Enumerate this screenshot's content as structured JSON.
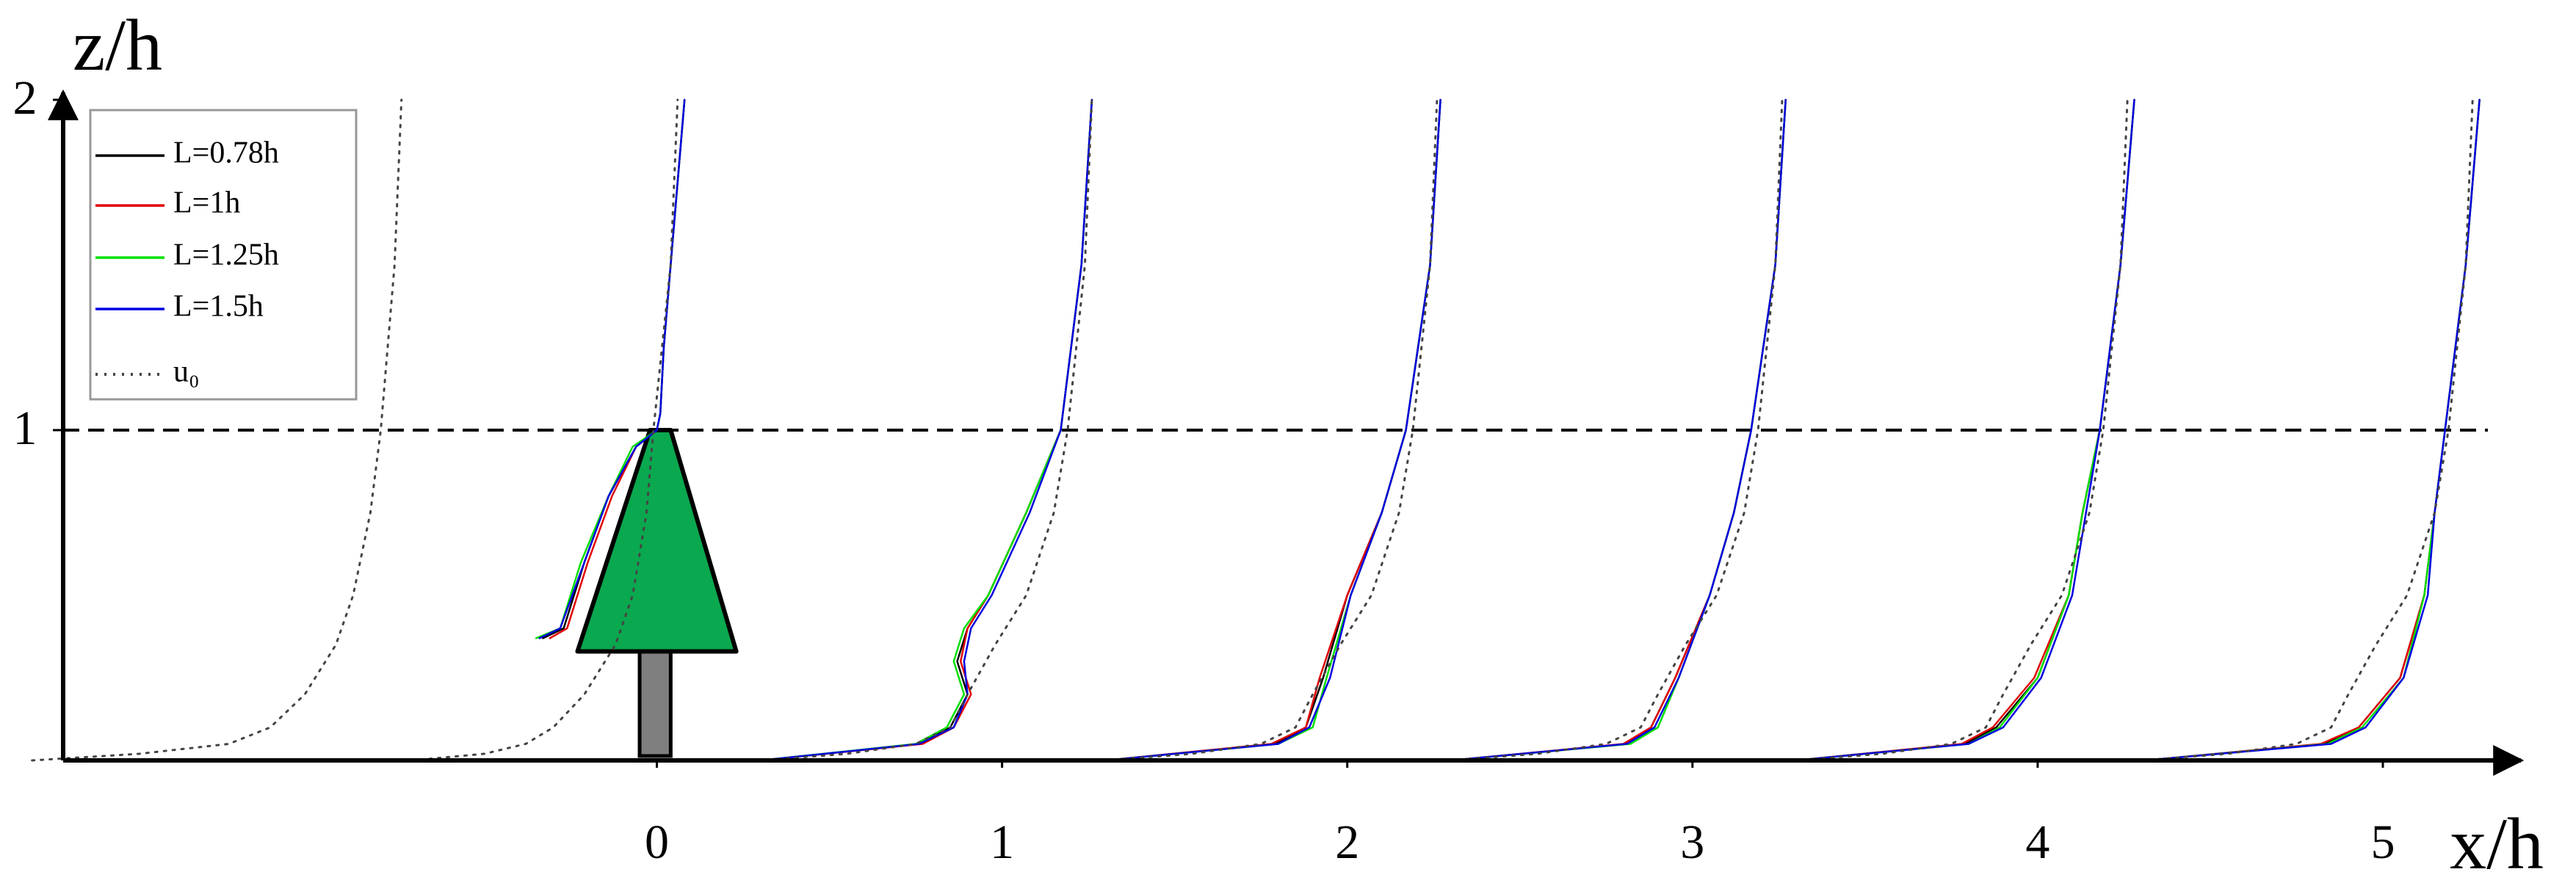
{
  "chart_data": {
    "type": "line",
    "x_label": "x/h",
    "y_label": "z/h",
    "xlim": [
      -1.72,
      5.4
    ],
    "ylim": [
      0,
      2
    ],
    "xticks": [
      0,
      1,
      2,
      3,
      4,
      5
    ],
    "yticks": [
      1,
      2
    ],
    "hline": 1,
    "legend": "upper left",
    "series": [
      {
        "name": "L=0.78h",
        "color": "#000000",
        "linestyle": "solid",
        "x": [
          -0.33,
          -0.27,
          -0.21,
          -0.14,
          -0.06,
          0,
          0.01,
          0.02,
          0.04,
          0.08,
          null,
          0.3,
          0.76,
          0.85,
          0.9,
          0.87,
          0.9,
          0.96,
          1.07,
          1.17,
          1.23,
          1.26,
          null,
          1.3,
          1.79,
          1.88,
          1.93,
          2,
          2.1,
          2.17,
          2.24,
          2.27,
          null,
          2.3,
          2.81,
          2.88,
          2.95,
          3.05,
          3.12,
          3.17,
          3.24,
          3.27,
          null,
          3.3,
          3.79,
          3.88,
          4,
          4.09,
          4.13,
          4.18,
          4.24,
          4.28,
          null,
          4.31,
          4.83,
          4.93,
          5.05,
          5.12,
          5.15,
          5.18,
          5.24,
          5.28
        ],
        "values": [
          0.37,
          0.4,
          0.6,
          0.8,
          0.95,
          1,
          1.05,
          1.25,
          1.5,
          2,
          null,
          0,
          0.05,
          0.1,
          0.2,
          0.3,
          0.4,
          0.5,
          0.75,
          1,
          1.5,
          2,
          null,
          0,
          0.05,
          0.1,
          0.25,
          0.5,
          0.75,
          1,
          1.5,
          2,
          null,
          0,
          0.05,
          0.1,
          0.25,
          0.5,
          0.75,
          1,
          1.5,
          2,
          null,
          0,
          0.05,
          0.1,
          0.25,
          0.5,
          0.75,
          1,
          1.5,
          2,
          null,
          0,
          0.05,
          0.1,
          0.25,
          0.5,
          0.75,
          1,
          1.5,
          2
        ]
      },
      {
        "name": "L=1h",
        "color": "#e00000",
        "linestyle": "solid",
        "x": [
          -0.31,
          -0.26,
          -0.2,
          -0.13,
          -0.06,
          0,
          0.01,
          0.02,
          0.04,
          0.08,
          null,
          0.3,
          0.77,
          0.86,
          0.91,
          0.88,
          0.9,
          0.96,
          1.07,
          1.17,
          1.23,
          1.26,
          null,
          1.3,
          1.78,
          1.88,
          1.92,
          2,
          2.1,
          2.17,
          2.24,
          2.27,
          null,
          2.3,
          2.8,
          2.88,
          2.95,
          3.05,
          3.12,
          3.17,
          3.24,
          3.27,
          null,
          3.3,
          3.78,
          3.87,
          3.99,
          4.09,
          4.13,
          4.18,
          4.24,
          4.28,
          null,
          4.31,
          4.82,
          4.93,
          5.05,
          5.12,
          5.15,
          5.18,
          5.24,
          5.28
        ],
        "values": [
          0.37,
          0.4,
          0.6,
          0.8,
          0.95,
          1,
          1.05,
          1.25,
          1.5,
          2,
          null,
          0,
          0.05,
          0.1,
          0.2,
          0.3,
          0.4,
          0.5,
          0.75,
          1,
          1.5,
          2,
          null,
          0,
          0.05,
          0.1,
          0.25,
          0.5,
          0.75,
          1,
          1.5,
          2,
          null,
          0,
          0.05,
          0.1,
          0.25,
          0.5,
          0.75,
          1,
          1.5,
          2,
          null,
          0,
          0.05,
          0.1,
          0.25,
          0.5,
          0.75,
          1,
          1.5,
          2,
          null,
          0,
          0.05,
          0.1,
          0.25,
          0.5,
          0.75,
          1,
          1.5,
          2
        ]
      },
      {
        "name": "L=1.25h",
        "color": "#00e000",
        "linestyle": "solid",
        "x": [
          -0.35,
          -0.28,
          -0.22,
          -0.14,
          -0.07,
          0,
          0.01,
          0.02,
          0.04,
          0.08,
          null,
          0.3,
          0.75,
          0.84,
          0.89,
          0.86,
          0.89,
          0.96,
          1.07,
          1.17,
          1.23,
          1.26,
          null,
          1.3,
          1.8,
          1.9,
          1.94,
          2.01,
          2.1,
          2.17,
          2.24,
          2.27,
          null,
          2.3,
          2.82,
          2.9,
          2.96,
          3.05,
          3.12,
          3.17,
          3.24,
          3.27,
          null,
          3.3,
          3.8,
          3.89,
          4,
          4.09,
          4.13,
          4.18,
          4.24,
          4.28,
          null,
          4.31,
          4.84,
          4.94,
          5.06,
          5.12,
          5.15,
          5.18,
          5.24,
          5.28
        ],
        "values": [
          0.37,
          0.4,
          0.6,
          0.8,
          0.95,
          1,
          1.05,
          1.25,
          1.5,
          2,
          null,
          0,
          0.05,
          0.1,
          0.2,
          0.3,
          0.4,
          0.5,
          0.75,
          1,
          1.5,
          2,
          null,
          0,
          0.05,
          0.1,
          0.25,
          0.5,
          0.75,
          1,
          1.5,
          2,
          null,
          0,
          0.05,
          0.1,
          0.25,
          0.5,
          0.75,
          1,
          1.5,
          2,
          null,
          0,
          0.05,
          0.1,
          0.25,
          0.5,
          0.75,
          1,
          1.5,
          2,
          null,
          0,
          0.05,
          0.1,
          0.25,
          0.5,
          0.75,
          1,
          1.5,
          2
        ]
      },
      {
        "name": "L=1.5h",
        "color": "#0000e0",
        "linestyle": "solid",
        "x": [
          -0.34,
          -0.28,
          -0.21,
          -0.14,
          -0.06,
          0,
          0.01,
          0.02,
          0.04,
          0.08,
          null,
          0.3,
          0.76,
          0.86,
          0.9,
          0.89,
          0.91,
          0.97,
          1.08,
          1.17,
          1.23,
          1.26,
          null,
          1.3,
          1.8,
          1.89,
          1.95,
          2.01,
          2.1,
          2.17,
          2.24,
          2.27,
          null,
          2.3,
          2.81,
          2.89,
          2.96,
          3.05,
          3.12,
          3.17,
          3.24,
          3.27,
          null,
          3.3,
          3.8,
          3.9,
          4.01,
          4.1,
          4.14,
          4.18,
          4.24,
          4.28,
          null,
          4.31,
          4.85,
          4.95,
          5.06,
          5.13,
          5.15,
          5.18,
          5.24,
          5.28
        ],
        "values": [
          0.37,
          0.4,
          0.6,
          0.8,
          0.95,
          1,
          1.05,
          1.25,
          1.5,
          2,
          null,
          0,
          0.05,
          0.1,
          0.2,
          0.3,
          0.4,
          0.5,
          0.75,
          1,
          1.5,
          2,
          null,
          0,
          0.05,
          0.1,
          0.25,
          0.5,
          0.75,
          1,
          1.5,
          2,
          null,
          0,
          0.05,
          0.1,
          0.25,
          0.5,
          0.75,
          1,
          1.5,
          2,
          null,
          0,
          0.05,
          0.1,
          0.25,
          0.5,
          0.75,
          1,
          1.5,
          2,
          null,
          0,
          0.05,
          0.1,
          0.25,
          0.5,
          0.75,
          1,
          1.5,
          2
        ]
      },
      {
        "name": "u₀",
        "color": "#444444",
        "linestyle": "dotted",
        "x": [
          -1.81,
          -1.5,
          -1.24,
          -1.12,
          -1.02,
          -0.93,
          -0.88,
          -0.83,
          -0.8,
          -0.76,
          -0.74,
          null,
          -0.71,
          -0.5,
          -0.38,
          -0.3,
          -0.21,
          -0.12,
          -0.07,
          -0.03,
          -0.01,
          0.04,
          0.06,
          null,
          0.3,
          0.55,
          0.75,
          0.85,
          0.9,
          0.98,
          1.07,
          1.15,
          1.19,
          1.24,
          1.26,
          null,
          1.3,
          1.55,
          1.75,
          1.85,
          1.9,
          1.98,
          2.07,
          2.15,
          2.19,
          2.24,
          2.26,
          null,
          2.3,
          2.55,
          2.75,
          2.85,
          2.9,
          2.98,
          3.07,
          3.15,
          3.19,
          3.24,
          3.26,
          null,
          3.3,
          3.55,
          3.75,
          3.85,
          3.9,
          3.98,
          4.07,
          4.15,
          4.19,
          4.24,
          4.26,
          null,
          4.3,
          4.55,
          4.75,
          4.85,
          4.9,
          4.98,
          5.07,
          5.15,
          5.19,
          5.24,
          5.26
        ],
        "values": [
          0,
          0.02,
          0.05,
          0.1,
          0.2,
          0.35,
          0.5,
          0.75,
          1,
          1.5,
          2,
          null,
          0,
          0.02,
          0.05,
          0.1,
          0.2,
          0.35,
          0.5,
          0.75,
          1,
          1.5,
          2,
          null,
          0,
          0.02,
          0.05,
          0.1,
          0.2,
          0.35,
          0.5,
          0.75,
          1,
          1.5,
          2,
          null,
          0,
          0.02,
          0.05,
          0.1,
          0.2,
          0.35,
          0.5,
          0.75,
          1,
          1.5,
          2,
          null,
          0,
          0.02,
          0.05,
          0.1,
          0.2,
          0.35,
          0.5,
          0.75,
          1,
          1.5,
          2,
          null,
          0,
          0.02,
          0.05,
          0.1,
          0.2,
          0.35,
          0.5,
          0.75,
          1,
          1.5,
          2,
          null,
          0,
          0.02,
          0.05,
          0.1,
          0.2,
          0.35,
          0.5,
          0.75,
          1,
          1.5,
          2
        ]
      }
    ]
  }
}
